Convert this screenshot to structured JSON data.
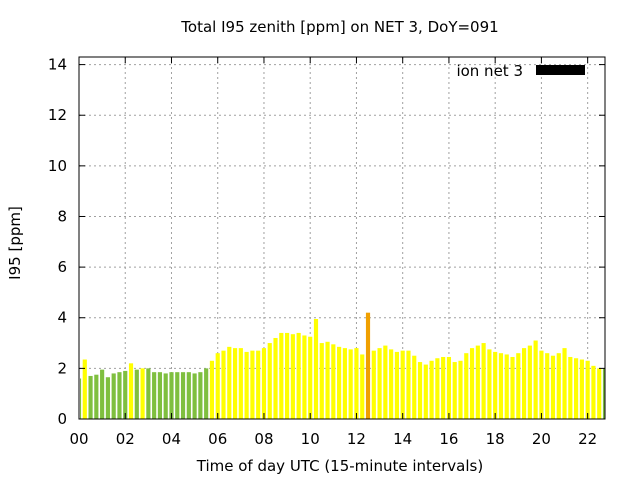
{
  "chart_data": {
    "type": "bar",
    "title": "Total I95 zenith [ppm] on NET 3, DoY=091",
    "xlabel": "Time of day UTC (15-minute intervals)",
    "ylabel": "I95 [ppm]",
    "xlim": [
      0,
      22.75
    ],
    "ylim": [
      0,
      14.3
    ],
    "xticks": [
      "00",
      "02",
      "04",
      "06",
      "08",
      "10",
      "12",
      "14",
      "16",
      "18",
      "20",
      "22"
    ],
    "yticks": [
      "0",
      "2",
      "4",
      "6",
      "8",
      "10",
      "12",
      "14"
    ],
    "grid": true,
    "legend": {
      "label": "ion net 3",
      "color": "#000000",
      "position": "top-right"
    },
    "bar_step_hours": 0.25,
    "colors": {
      "green": "#7fbf3f",
      "yellow": "#ffff00",
      "orange": "#f0a000"
    },
    "series": [
      {
        "x": [
          0.0,
          0.25,
          0.5,
          0.75,
          1.0,
          1.25,
          1.5,
          1.75,
          2.0,
          2.25,
          2.5,
          2.75,
          3.0,
          3.25,
          3.5,
          3.75,
          4.0,
          4.25,
          4.5,
          4.75,
          5.0,
          5.25,
          5.5,
          5.75,
          6.0,
          6.25,
          6.5,
          6.75,
          7.0,
          7.25,
          7.5,
          7.75,
          8.0,
          8.25,
          8.5,
          8.75,
          9.0,
          9.25,
          9.5,
          9.75,
          10.0,
          10.25,
          10.5,
          10.75,
          11.0,
          11.25,
          11.5,
          11.75,
          12.0,
          12.25,
          12.5,
          12.75,
          13.0,
          13.25,
          13.5,
          13.75,
          14.0,
          14.25,
          14.5,
          14.75,
          15.0,
          15.25,
          15.5,
          15.75,
          16.0,
          16.25,
          16.5,
          16.75,
          17.0,
          17.25,
          17.5,
          17.75,
          18.0,
          18.25,
          18.5,
          18.75,
          19.0,
          19.25,
          19.5,
          19.75,
          20.0,
          20.25,
          20.5,
          20.75,
          21.0,
          21.25,
          21.5,
          21.75,
          22.0,
          22.25,
          22.5,
          22.75
        ],
        "values": [
          1.6,
          2.35,
          1.7,
          1.75,
          1.95,
          1.65,
          1.8,
          1.85,
          1.9,
          2.2,
          1.95,
          2.0,
          2.0,
          1.85,
          1.85,
          1.8,
          1.85,
          1.85,
          1.85,
          1.85,
          1.8,
          1.85,
          2.0,
          2.3,
          2.6,
          2.7,
          2.85,
          2.8,
          2.8,
          2.65,
          2.7,
          2.7,
          2.8,
          3.0,
          3.2,
          3.4,
          3.4,
          3.35,
          3.4,
          3.3,
          3.25,
          3.95,
          3.0,
          3.05,
          2.95,
          2.85,
          2.8,
          2.75,
          2.8,
          2.55,
          4.2,
          2.7,
          2.8,
          2.9,
          2.75,
          2.65,
          2.7,
          2.7,
          2.5,
          2.25,
          2.15,
          2.3,
          2.4,
          2.45,
          2.45,
          2.25,
          2.3,
          2.6,
          2.8,
          2.9,
          3.0,
          2.75,
          2.65,
          2.6,
          2.55,
          2.45,
          2.6,
          2.8,
          2.9,
          3.1,
          2.7,
          2.6,
          2.5,
          2.6,
          2.8,
          2.45,
          2.4,
          2.35,
          2.3,
          2.1,
          2.0,
          2.0
        ],
        "colors": [
          "green",
          "yellow",
          "green",
          "green",
          "green",
          "green",
          "green",
          "green",
          "green",
          "yellow",
          "green",
          "yellow",
          "green",
          "green",
          "green",
          "green",
          "green",
          "green",
          "green",
          "green",
          "green",
          "green",
          "green",
          "yellow",
          "yellow",
          "yellow",
          "yellow",
          "yellow",
          "yellow",
          "yellow",
          "yellow",
          "yellow",
          "yellow",
          "yellow",
          "yellow",
          "yellow",
          "yellow",
          "yellow",
          "yellow",
          "yellow",
          "yellow",
          "yellow",
          "yellow",
          "yellow",
          "yellow",
          "yellow",
          "yellow",
          "yellow",
          "yellow",
          "yellow",
          "orange",
          "yellow",
          "yellow",
          "yellow",
          "yellow",
          "yellow",
          "yellow",
          "yellow",
          "yellow",
          "yellow",
          "yellow",
          "yellow",
          "yellow",
          "yellow",
          "yellow",
          "yellow",
          "yellow",
          "yellow",
          "yellow",
          "yellow",
          "yellow",
          "yellow",
          "yellow",
          "yellow",
          "yellow",
          "yellow",
          "yellow",
          "yellow",
          "yellow",
          "yellow",
          "yellow",
          "yellow",
          "yellow",
          "yellow",
          "yellow",
          "yellow",
          "yellow",
          "yellow",
          "yellow",
          "yellow",
          "yellow",
          "green"
        ]
      }
    ]
  }
}
